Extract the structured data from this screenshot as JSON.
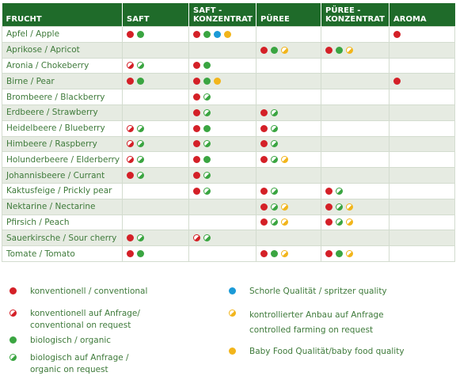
{
  "table": {
    "headers": [
      "FRUCHT",
      "SAFT",
      "SAFT -\nKONZENTRAT",
      "PÜREE",
      "PÜREE -\nKONZENTRAT",
      "AROMA"
    ],
    "rows": [
      {
        "fruit": "Apfel / Apple",
        "cells": [
          [
            "red",
            "green"
          ],
          [
            "red",
            "green",
            "blue",
            "yellow"
          ],
          [],
          [],
          [
            "red"
          ]
        ]
      },
      {
        "fruit": "Aprikose / Apricot",
        "cells": [
          [],
          [],
          [
            "red",
            "green",
            "h-yellow"
          ],
          [
            "red",
            "green",
            "h-yellow"
          ],
          []
        ]
      },
      {
        "fruit": "Aronia / Chokeberry",
        "cells": [
          [
            "h-red",
            "h-green"
          ],
          [
            "red",
            "green"
          ],
          [],
          [],
          []
        ]
      },
      {
        "fruit": "Birne / Pear",
        "cells": [
          [
            "red",
            "green"
          ],
          [
            "red",
            "green",
            "yellow"
          ],
          [],
          [],
          [
            "red"
          ]
        ]
      },
      {
        "fruit": "Brombeere / Blackberry",
        "cells": [
          [],
          [
            "red",
            "h-green"
          ],
          [],
          [],
          []
        ]
      },
      {
        "fruit": "Erdbeere / Strawberry",
        "cells": [
          [],
          [
            "red",
            "h-green"
          ],
          [
            "red",
            "h-green"
          ],
          [],
          []
        ]
      },
      {
        "fruit": "Heidelbeere / Blueberry",
        "cells": [
          [
            "h-red",
            "h-green"
          ],
          [
            "red",
            "green"
          ],
          [
            "red",
            "h-green"
          ],
          [],
          []
        ]
      },
      {
        "fruit": "Himbeere / Raspberry",
        "cells": [
          [
            "h-red",
            "h-green"
          ],
          [
            "red",
            "h-green"
          ],
          [
            "red",
            "h-green"
          ],
          [],
          []
        ]
      },
      {
        "fruit": "Holunderbeere / Elderberry",
        "cells": [
          [
            "h-red",
            "h-green"
          ],
          [
            "red",
            "green"
          ],
          [
            "red",
            "h-green",
            "h-yellow"
          ],
          [],
          []
        ]
      },
      {
        "fruit": "Johannisbeere / Currant",
        "cells": [
          [
            "red",
            "h-green"
          ],
          [
            "red",
            "h-green"
          ],
          [],
          [],
          []
        ]
      },
      {
        "fruit": "Kaktusfeige / Prickly pear",
        "cells": [
          [],
          [
            "red",
            "h-green"
          ],
          [
            "red",
            "h-green"
          ],
          [
            "red",
            "h-green"
          ],
          []
        ]
      },
      {
        "fruit": "Nektarine / Nectarine",
        "cells": [
          [],
          [],
          [
            "red",
            "h-green",
            "h-yellow"
          ],
          [
            "red",
            "h-green",
            "h-yellow"
          ],
          []
        ]
      },
      {
        "fruit": "Pfirsich / Peach",
        "cells": [
          [],
          [],
          [
            "red",
            "h-green",
            "h-yellow"
          ],
          [
            "red",
            "h-green",
            "h-yellow"
          ],
          []
        ]
      },
      {
        "fruit": "Sauerkirsche / Sour cherry",
        "cells": [
          [
            "red",
            "h-green"
          ],
          [
            "h-red",
            "h-green"
          ],
          [],
          [],
          []
        ]
      },
      {
        "fruit": "Tomate / Tomato",
        "cells": [
          [
            "red",
            "green"
          ],
          [],
          [
            "red",
            "green",
            "h-yellow"
          ],
          [
            "red",
            "green",
            "h-yellow"
          ],
          []
        ]
      }
    ]
  },
  "legend": {
    "conventional": "konventionell / conventional",
    "conventional_request": "konventionell auf Anfrage/\nconventional on request",
    "organic": "biologisch / organic",
    "organic_request": "biologisch auf Anfrage /\norganic on request",
    "spritzer": "Schorle Qualität / spritzer quality",
    "controlled": "kontrollierter Anbau auf Anfrage\ncontrolled farming on request",
    "babyfood": "Baby Food Qualität/baby food quality"
  },
  "colors": {
    "red": "#d42027",
    "green": "#3aa541",
    "blue": "#1b9ad7",
    "yellow": "#f2b51b",
    "header_bg": "#1f6b2a"
  }
}
